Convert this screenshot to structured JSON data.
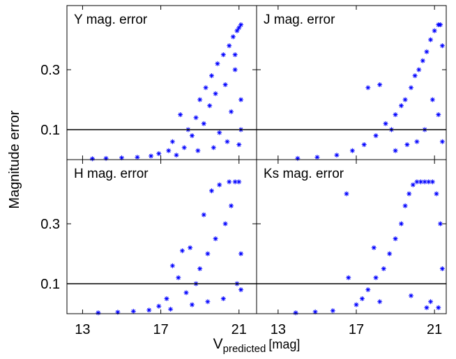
{
  "x_label": {
    "main": "V",
    "sub": "predicted",
    "unit": "[mag]"
  },
  "y_label": "Magnitude error",
  "chart_data": [
    {
      "type": "scatter",
      "title": "Y mag. error",
      "color": "#0000ff",
      "threshold": 0.1,
      "xlim": [
        12.2,
        21.9
      ],
      "xticks": [
        13,
        17,
        21
      ],
      "ylim": [
        0,
        0.514
      ],
      "yticks": [
        0.1,
        0.3
      ],
      "x": [
        13.5,
        14.2,
        15.0,
        15.8,
        16.5,
        16.9,
        17.4,
        17.6,
        18.0,
        18.2,
        18.4,
        18.6,
        18.8,
        19.0,
        19.2,
        19.3,
        19.5,
        19.6,
        19.8,
        19.9,
        20.0,
        20.2,
        20.3,
        20.5,
        20.6,
        20.7,
        20.8,
        20.9,
        21.0,
        21.1,
        21.1,
        21.0,
        20.4,
        19.7,
        18.9,
        17.8,
        21.1,
        20.8
      ],
      "y": [
        0.003,
        0.004,
        0.006,
        0.008,
        0.012,
        0.02,
        0.03,
        0.06,
        0.15,
        0.04,
        0.1,
        0.08,
        0.14,
        0.2,
        0.12,
        0.24,
        0.18,
        0.28,
        0.22,
        0.32,
        0.09,
        0.35,
        0.25,
        0.38,
        0.16,
        0.41,
        0.3,
        0.43,
        0.44,
        0.45,
        0.2,
        0.05,
        0.06,
        0.04,
        0.03,
        0.015,
        0.1,
        0.35
      ]
    },
    {
      "type": "scatter",
      "title": "J mag. error",
      "color": "#0000ff",
      "threshold": 0.1,
      "xlim": [
        11.9,
        21.6
      ],
      "xticks": [
        13,
        17,
        21
      ],
      "ylim": [
        0,
        0.514
      ],
      "yticks": [
        0.1,
        0.3
      ],
      "x": [
        14.0,
        15.0,
        16.0,
        16.8,
        17.4,
        17.6,
        18.0,
        18.2,
        18.5,
        18.8,
        19.0,
        19.3,
        19.5,
        19.8,
        20.0,
        20.2,
        20.4,
        20.6,
        20.8,
        21.0,
        21.2,
        21.3,
        21.4,
        21.2,
        20.9,
        20.1,
        19.6,
        19.0,
        21.4,
        20.5
      ],
      "y": [
        0.004,
        0.008,
        0.015,
        0.03,
        0.05,
        0.24,
        0.08,
        0.25,
        0.12,
        0.1,
        0.15,
        0.18,
        0.2,
        0.24,
        0.28,
        0.3,
        0.33,
        0.36,
        0.4,
        0.43,
        0.45,
        0.45,
        0.38,
        0.15,
        0.2,
        0.06,
        0.05,
        0.03,
        0.06,
        0.1
      ]
    },
    {
      "type": "scatter",
      "title": "H mag. error",
      "color": "#0000ff",
      "threshold": 0.1,
      "xlim": [
        12.2,
        21.9
      ],
      "xticks": [
        13,
        17,
        21
      ],
      "ylim": [
        0,
        0.514
      ],
      "yticks": [
        0.1,
        0.3
      ],
      "x": [
        13.8,
        14.8,
        15.6,
        16.4,
        16.9,
        17.3,
        17.6,
        17.9,
        18.1,
        18.3,
        18.5,
        18.8,
        19.0,
        19.2,
        19.4,
        19.6,
        19.8,
        20.0,
        20.3,
        20.5,
        20.8,
        21.0,
        21.1,
        20.9,
        20.2,
        19.4,
        18.6,
        17.5,
        21.1,
        20.6
      ],
      "y": [
        0.003,
        0.005,
        0.008,
        0.012,
        0.025,
        0.05,
        0.16,
        0.12,
        0.21,
        0.07,
        0.22,
        0.1,
        0.15,
        0.33,
        0.2,
        0.41,
        0.25,
        0.43,
        0.3,
        0.44,
        0.44,
        0.44,
        0.2,
        0.1,
        0.05,
        0.04,
        0.03,
        0.015,
        0.08,
        0.36
      ]
    },
    {
      "type": "scatter",
      "title": "Ks mag. error",
      "color": "#0000ff",
      "threshold": 0.1,
      "xlim": [
        11.9,
        21.6
      ],
      "xticks": [
        13,
        17,
        21
      ],
      "ylim": [
        0,
        0.514
      ],
      "yticks": [
        0.1,
        0.3
      ],
      "x": [
        13.9,
        14.9,
        15.8,
        16.5,
        16.6,
        17.0,
        17.3,
        17.6,
        17.9,
        18.0,
        18.4,
        18.7,
        19.0,
        19.3,
        19.5,
        19.7,
        19.9,
        20.1,
        20.3,
        20.5,
        20.7,
        20.9,
        21.1,
        21.3,
        21.4,
        21.2,
        20.8,
        20.6,
        19.8,
        18.2
      ],
      "y": [
        0.003,
        0.006,
        0.01,
        0.4,
        0.12,
        0.03,
        0.05,
        0.08,
        0.22,
        0.12,
        0.15,
        0.2,
        0.25,
        0.3,
        0.36,
        0.4,
        0.43,
        0.44,
        0.44,
        0.44,
        0.44,
        0.44,
        0.4,
        0.3,
        0.15,
        0.02,
        0.04,
        0.02,
        0.06,
        0.04
      ]
    }
  ]
}
